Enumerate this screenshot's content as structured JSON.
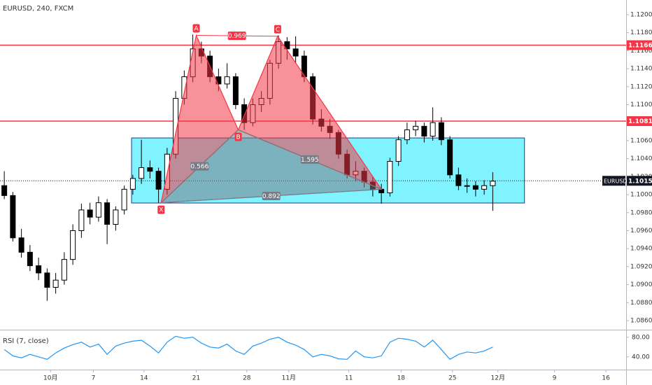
{
  "chart_data": {
    "type": "candlestick",
    "title": "EURUSD, 240, FXCM",
    "x": [
      0.5,
      1.5,
      2.5,
      3.5,
      4.5,
      5.5,
      6.5,
      7.5,
      8.5,
      9.5,
      10.5,
      11.5,
      12.5,
      13.5,
      14.5,
      15.5,
      16.5,
      17.5,
      18.5,
      19.5,
      20.5,
      21.5,
      22.5,
      23.5,
      24.5,
      25.5,
      26.5,
      27.5,
      28.5,
      29.5,
      30.5,
      31.5,
      32.5,
      33.5,
      34.5,
      35.5,
      36.5,
      37.5,
      38.5,
      39.5,
      40.5,
      41.5,
      42.5,
      43.5,
      44.5,
      45.5,
      46.5,
      47.5,
      48.5,
      49.5,
      50.5,
      51.5,
      52.5,
      53.5,
      54.5,
      55.5,
      56.5,
      57.5
    ],
    "open": [
      1.101,
      1.0999,
      1.0952,
      1.0936,
      1.0921,
      1.0913,
      1.0897,
      1.0905,
      1.0928,
      1.096,
      1.0983,
      1.0975,
      1.0991,
      1.0967,
      1.0983,
      1.1006,
      1.1018,
      1.103,
      1.1026,
      1.1006,
      1.1045,
      1.1107,
      1.1131,
      1.1162,
      1.1154,
      1.1131,
      1.1123,
      1.1131,
      1.11,
      1.108,
      1.11,
      1.1107,
      1.1146,
      1.117,
      1.1162,
      1.1154,
      1.1131,
      1.1084,
      1.1076,
      1.1069,
      1.1045,
      1.1022,
      1.1026,
      1.1014,
      1.1006,
      1.1002,
      1.1037,
      1.1061,
      1.1072,
      1.1076,
      1.1065,
      1.108,
      1.1061,
      1.1022,
      1.101,
      1.101,
      1.1006,
      1.101
    ],
    "high": [
      1.1026,
      1.1003,
      1.0962,
      1.0944,
      1.093,
      1.0918,
      1.0913,
      1.0936,
      1.0967,
      1.099,
      1.0991,
      1.0998,
      1.0995,
      1.0987,
      1.101,
      1.1022,
      1.1061,
      1.1038,
      1.103,
      1.1052,
      1.1115,
      1.1138,
      1.1178,
      1.117,
      1.116,
      1.114,
      1.1146,
      1.1135,
      1.1107,
      1.1107,
      1.1115,
      1.115,
      1.1177,
      1.1175,
      1.1176,
      1.116,
      1.1135,
      1.1095,
      1.1084,
      1.1072,
      1.105,
      1.1037,
      1.103,
      1.102,
      1.1012,
      1.1041,
      1.1065,
      1.108,
      1.1082,
      1.108,
      1.1097,
      1.1086,
      1.1065,
      1.103,
      1.1018,
      1.1015,
      1.1016,
      1.1025
    ],
    "low": [
      1.0995,
      1.0948,
      1.093,
      1.0915,
      1.0905,
      1.0882,
      1.089,
      1.09,
      1.0922,
      1.0952,
      1.0967,
      1.097,
      1.0945,
      1.096,
      1.0978,
      1.1,
      1.1012,
      1.1018,
      1.0991,
      1.1,
      1.104,
      1.11,
      1.1125,
      1.1146,
      1.1125,
      1.1115,
      1.1118,
      1.1095,
      1.1072,
      1.1076,
      1.1092,
      1.11,
      1.114,
      1.115,
      1.1146,
      1.1125,
      1.1078,
      1.107,
      1.1062,
      1.104,
      1.1018,
      1.1015,
      1.1008,
      1.0998,
      1.099,
      1.0998,
      1.1032,
      1.1056,
      1.1065,
      1.1058,
      1.106,
      1.1055,
      1.1018,
      1.1005,
      1.1002,
      1.0998,
      1.1,
      1.0982
    ],
    "close": [
      1.0999,
      1.0952,
      1.0936,
      1.0921,
      1.0913,
      1.0897,
      1.0905,
      1.0928,
      1.096,
      1.0983,
      1.0975,
      1.0991,
      1.0967,
      1.0983,
      1.1006,
      1.1018,
      1.103,
      1.1026,
      1.1006,
      1.1045,
      1.1107,
      1.1131,
      1.1162,
      1.1154,
      1.1131,
      1.1123,
      1.1131,
      1.11,
      1.108,
      1.11,
      1.1107,
      1.1146,
      1.117,
      1.1162,
      1.1154,
      1.1131,
      1.1084,
      1.1076,
      1.1069,
      1.1045,
      1.1022,
      1.1026,
      1.1014,
      1.1006,
      1.1002,
      1.1037,
      1.1061,
      1.1072,
      1.1076,
      1.1065,
      1.108,
      1.1061,
      1.1022,
      1.101,
      1.101,
      1.1006,
      1.101,
      1.1015
    ],
    "up_color": "#ffffff",
    "down_color": "#000000",
    "xlim": [
      0,
      73.06
    ],
    "xticks": [
      {
        "value": 5.9,
        "label": "10月"
      },
      {
        "value": 10.9,
        "label": "7"
      },
      {
        "value": 16.8,
        "label": "14"
      },
      {
        "value": 22.9,
        "label": "21"
      },
      {
        "value": 28.8,
        "label": "28"
      },
      {
        "value": 33.7,
        "label": "11月"
      },
      {
        "value": 40.7,
        "label": "11"
      },
      {
        "value": 46.8,
        "label": "18"
      },
      {
        "value": 52.8,
        "label": "25"
      },
      {
        "value": 58.1,
        "label": "12月"
      },
      {
        "value": 64.7,
        "label": "9"
      },
      {
        "value": 70.7,
        "label": "16"
      }
    ],
    "ylim": [
      1.08507,
      1.12163
    ],
    "yticks": [
      {
        "value": 1.12,
        "label": "1.12000"
      },
      {
        "value": 1.118,
        "label": "1.11800"
      },
      {
        "value": 1.116,
        "label": "1.11600"
      },
      {
        "value": 1.114,
        "label": "1.11400"
      },
      {
        "value": 1.112,
        "label": "1.11200"
      },
      {
        "value": 1.11,
        "label": "1.11000"
      },
      {
        "value": 1.108,
        "label": "1.10800"
      },
      {
        "value": 1.106,
        "label": "1.10600"
      },
      {
        "value": 1.104,
        "label": "1.10400"
      },
      {
        "value": 1.102,
        "label": "1.10200"
      },
      {
        "value": 1.1,
        "label": "1.10000"
      },
      {
        "value": 1.098,
        "label": "1.09800"
      },
      {
        "value": 1.096,
        "label": "1.09600"
      },
      {
        "value": 1.094,
        "label": "1.09400"
      },
      {
        "value": 1.092,
        "label": "1.09200"
      },
      {
        "value": 1.09,
        "label": "1.09000"
      },
      {
        "value": 1.088,
        "label": "1.08800"
      },
      {
        "value": 1.086,
        "label": "1.08600"
      }
    ],
    "hlines": [
      1.11661,
      1.10817
    ],
    "hline_color": "#f23645",
    "last": {
      "symbol": "EURUSD",
      "value": 1.10154
    },
    "box": {
      "xlim": [
        15.35,
        61.2
      ],
      "ylim": [
        1.09907,
        1.1063
      ],
      "color": "#7ff3ff"
    },
    "pattern": {
      "points": [
        {
          "label": "X",
          "x": 18.8,
          "y": 1.0991
        },
        {
          "label": "A",
          "x": 22.9,
          "y": 1.1177
        },
        {
          "label": "B",
          "x": 27.8,
          "y": 1.1072
        },
        {
          "label": "C",
          "x": 32.4,
          "y": 1.1176
        },
        {
          "label": null,
          "x": 44.5,
          "y": 1.1006
        }
      ],
      "ratios": [
        0.969,
        0.566,
        1.595,
        0.892
      ],
      "color": "#f23645",
      "base_color": "#787b86"
    },
    "rsi": {
      "title": "RSI (7, close)",
      "color": "#2196f3",
      "values": [
        55,
        42,
        38,
        45,
        40,
        35,
        48,
        58,
        65,
        70,
        60,
        66,
        45,
        62,
        68,
        72,
        74,
        62,
        48,
        70,
        82,
        78,
        80,
        68,
        60,
        58,
        66,
        52,
        45,
        62,
        68,
        76,
        80,
        70,
        64,
        55,
        40,
        45,
        42,
        36,
        35,
        52,
        40,
        38,
        42,
        70,
        78,
        76,
        72,
        60,
        74,
        55,
        35,
        45,
        50,
        48,
        52,
        60
      ],
      "ylim": [
        14,
        94
      ],
      "yticks": [
        {
          "value": 80,
          "label": "80.00"
        },
        {
          "value": 40,
          "label": "40.00"
        }
      ]
    }
  }
}
